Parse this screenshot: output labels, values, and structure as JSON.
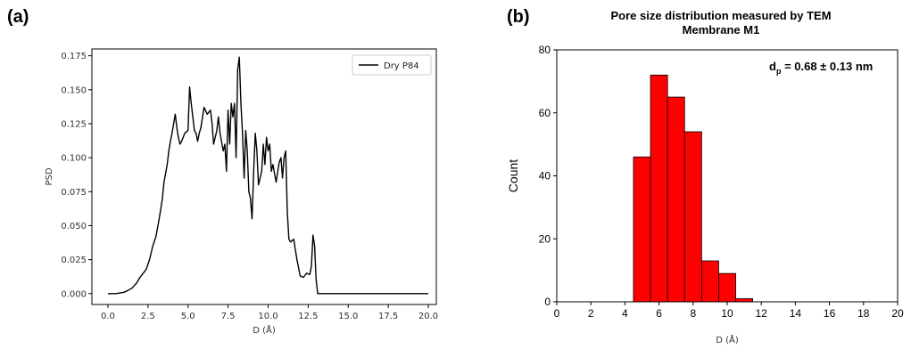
{
  "panels": {
    "a_label": "(a)",
    "b_label": "(b)"
  },
  "chart_data": [
    {
      "type": "line",
      "panel": "(a)",
      "title": "",
      "xlabel": "D (Å)",
      "ylabel": "PSD",
      "xlim": [
        -1,
        20.5
      ],
      "ylim": [
        -0.008,
        0.18
      ],
      "xticks": [
        0.0,
        2.5,
        5.0,
        7.5,
        10.0,
        12.5,
        15.0,
        17.5,
        20.0
      ],
      "xtick_labels": [
        "0.0",
        "2.5",
        "5.0",
        "7.5",
        "10.0",
        "12.5",
        "15.0",
        "17.5",
        "20.0"
      ],
      "yticks": [
        0.0,
        0.025,
        0.05,
        0.075,
        0.1,
        0.125,
        0.15,
        0.175
      ],
      "ytick_labels": [
        "0.000",
        "0.025",
        "0.050",
        "0.075",
        "0.100",
        "0.125",
        "0.150",
        "0.175"
      ],
      "legend": {
        "position": "top-right",
        "entries": [
          "Dry P84"
        ]
      },
      "line_color": "#000000",
      "series": [
        {
          "name": "Dry P84",
          "x": [
            0.0,
            0.5,
            1.0,
            1.2,
            1.5,
            1.8,
            2.0,
            2.2,
            2.4,
            2.6,
            2.8,
            3.0,
            3.2,
            3.4,
            3.5,
            3.7,
            3.8,
            3.9,
            4.0,
            4.1,
            4.2,
            4.3,
            4.4,
            4.5,
            4.6,
            4.8,
            5.0,
            5.1,
            5.2,
            5.4,
            5.5,
            5.6,
            5.7,
            5.8,
            6.0,
            6.2,
            6.4,
            6.5,
            6.6,
            6.8,
            6.9,
            7.0,
            7.2,
            7.3,
            7.4,
            7.5,
            7.6,
            7.7,
            7.8,
            7.9,
            8.0,
            8.1,
            8.2,
            8.3,
            8.4,
            8.5,
            8.6,
            8.7,
            8.8,
            8.9,
            9.0,
            9.1,
            9.2,
            9.3,
            9.4,
            9.5,
            9.6,
            9.7,
            9.8,
            9.9,
            10.0,
            10.1,
            10.2,
            10.3,
            10.4,
            10.5,
            10.6,
            10.7,
            10.8,
            10.9,
            11.0,
            11.1,
            11.2,
            11.3,
            11.4,
            11.6,
            11.8,
            12.0,
            12.2,
            12.4,
            12.6,
            12.7,
            12.8,
            12.9,
            13.0,
            13.1,
            13.3,
            14.0,
            16.0,
            18.0,
            20.0
          ],
          "y": [
            0.0,
            0.0,
            0.001,
            0.002,
            0.004,
            0.008,
            0.012,
            0.015,
            0.018,
            0.025,
            0.035,
            0.042,
            0.055,
            0.07,
            0.082,
            0.095,
            0.105,
            0.112,
            0.118,
            0.125,
            0.132,
            0.122,
            0.115,
            0.11,
            0.112,
            0.118,
            0.12,
            0.152,
            0.14,
            0.12,
            0.118,
            0.112,
            0.118,
            0.122,
            0.137,
            0.132,
            0.135,
            0.125,
            0.11,
            0.12,
            0.13,
            0.118,
            0.105,
            0.11,
            0.09,
            0.135,
            0.11,
            0.14,
            0.13,
            0.14,
            0.1,
            0.165,
            0.174,
            0.14,
            0.118,
            0.085,
            0.12,
            0.105,
            0.075,
            0.07,
            0.055,
            0.09,
            0.118,
            0.105,
            0.08,
            0.085,
            0.09,
            0.11,
            0.095,
            0.115,
            0.105,
            0.11,
            0.09,
            0.095,
            0.088,
            0.082,
            0.09,
            0.097,
            0.1,
            0.085,
            0.1,
            0.105,
            0.06,
            0.04,
            0.038,
            0.04,
            0.025,
            0.013,
            0.012,
            0.015,
            0.014,
            0.02,
            0.043,
            0.035,
            0.01,
            0.0,
            0.0,
            0.0,
            0.0,
            0.0,
            0.0
          ]
        }
      ]
    },
    {
      "type": "bar",
      "panel": "(b)",
      "title": "Pore size distribution measured by TEM",
      "subtitle": "Membrane M1",
      "xlabel": "D (Å)",
      "ylabel": "Count",
      "xlim": [
        0,
        20
      ],
      "ylim": [
        0,
        80
      ],
      "xticks": [
        0,
        2,
        4,
        6,
        8,
        10,
        12,
        14,
        16,
        18,
        20
      ],
      "xtick_labels": [
        "0",
        "2",
        "4",
        "6",
        "8",
        "10",
        "12",
        "14",
        "16",
        "18",
        "20"
      ],
      "yticks": [
        0,
        20,
        40,
        60,
        80
      ],
      "ytick_labels": [
        "0",
        "20",
        "40",
        "60",
        "80"
      ],
      "annotation": {
        "main": "d",
        "sub": "p",
        "rest": " = 0.68 ± 0.13 nm"
      },
      "bar_color": "#ff0000",
      "bin_edges": [
        4.5,
        5.5,
        6.5,
        7.5,
        8.5,
        9.5,
        10.5,
        11.5
      ],
      "categories": [
        "4.5-5.5",
        "5.5-6.5",
        "6.5-7.5",
        "7.5-8.5",
        "8.5-9.5",
        "9.5-10.5",
        "10.5-11.5"
      ],
      "values": [
        46,
        72,
        65,
        54,
        13,
        9,
        1
      ]
    }
  ]
}
